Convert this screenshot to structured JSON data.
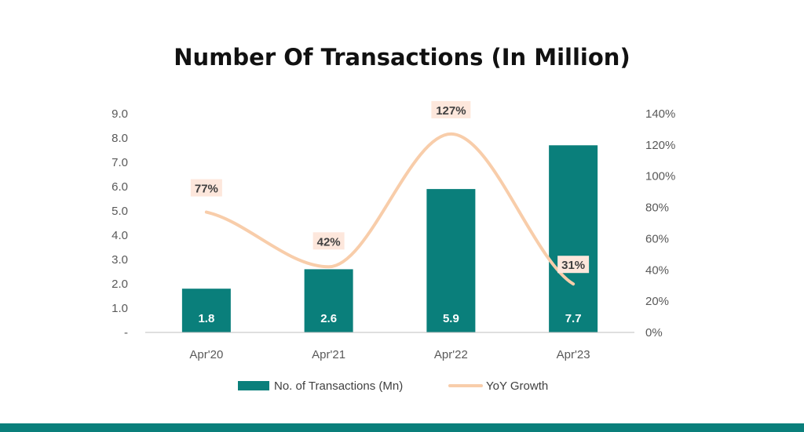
{
  "colors": {
    "bar": "#0a7f7b",
    "line": "#f8cdaa",
    "label_bg": "#fde7dc",
    "band": "#0a7f7b"
  },
  "chart_data": {
    "type": "bar",
    "title": "Number Of Transactions (In Million)",
    "categories": [
      "Apr'20",
      "Apr'21",
      "Apr'22",
      "Apr'23"
    ],
    "series": [
      {
        "name": "No. of Transactions (Mn)",
        "type": "bar",
        "axis": "left",
        "values": [
          1.8,
          2.6,
          5.9,
          7.7
        ],
        "labels": [
          "1.8",
          "2.6",
          "5.9",
          "7.7"
        ]
      },
      {
        "name": "YoY Growth",
        "type": "line",
        "smooth": true,
        "axis": "right",
        "values": [
          77,
          42,
          127,
          31
        ],
        "labels": [
          "77%",
          "42%",
          "127%",
          "31%"
        ]
      }
    ],
    "y_left": {
      "ylim": [
        0,
        9
      ],
      "ticks": [
        0,
        1,
        2,
        3,
        4,
        5,
        6,
        7,
        8,
        9
      ],
      "tick_labels": [
        "-",
        "1.0",
        "2.0",
        "3.0",
        "4.0",
        "5.0",
        "6.0",
        "7.0",
        "8.0",
        "9.0"
      ]
    },
    "y_right": {
      "ylim": [
        0,
        140
      ],
      "ticks": [
        0,
        20,
        40,
        60,
        80,
        100,
        120,
        140
      ],
      "tick_labels": [
        "0%",
        "20%",
        "40%",
        "60%",
        "80%",
        "100%",
        "120%",
        "140%"
      ]
    },
    "legend_position": "bottom",
    "grid": false
  }
}
